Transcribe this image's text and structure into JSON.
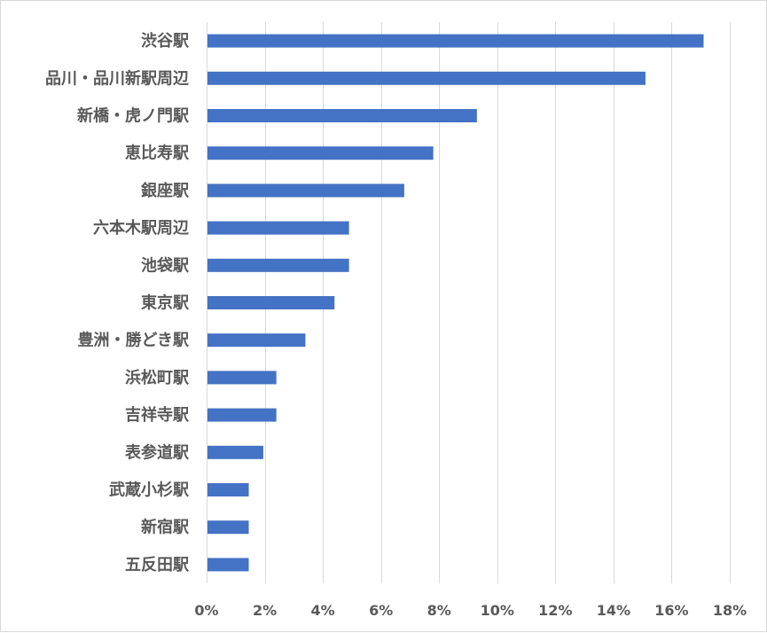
{
  "chart_data": {
    "type": "bar",
    "orientation": "horizontal",
    "categories": [
      "渋谷駅",
      "品川・品川新駅周辺",
      "新橋・虎ノ門駅",
      "恵比寿駅",
      "銀座駅",
      "六本木駅周辺",
      "池袋駅",
      "東京駅",
      "豊洲・勝どき駅",
      "浜松町駅",
      "吉祥寺駅",
      "表参道駅",
      "武蔵小杉駅",
      "新宿駅",
      "五反田駅"
    ],
    "values": [
      17.1,
      15.1,
      9.3,
      7.8,
      6.8,
      4.9,
      4.9,
      4.4,
      3.4,
      2.4,
      2.4,
      1.95,
      1.45,
      1.45,
      1.45
    ],
    "xlim": [
      0,
      18
    ],
    "xticks": [
      0,
      2,
      4,
      6,
      8,
      10,
      12,
      14,
      16,
      18
    ],
    "xtick_labels": [
      "0%",
      "2%",
      "4%",
      "6%",
      "8%",
      "10%",
      "12%",
      "14%",
      "16%",
      "18%"
    ],
    "title": "",
    "xlabel": "",
    "ylabel": "",
    "grid": "vertical",
    "legend": "none",
    "bar_color": "#4472c4",
    "grid_color": "#d9d9d9",
    "text_color": "#595959"
  }
}
